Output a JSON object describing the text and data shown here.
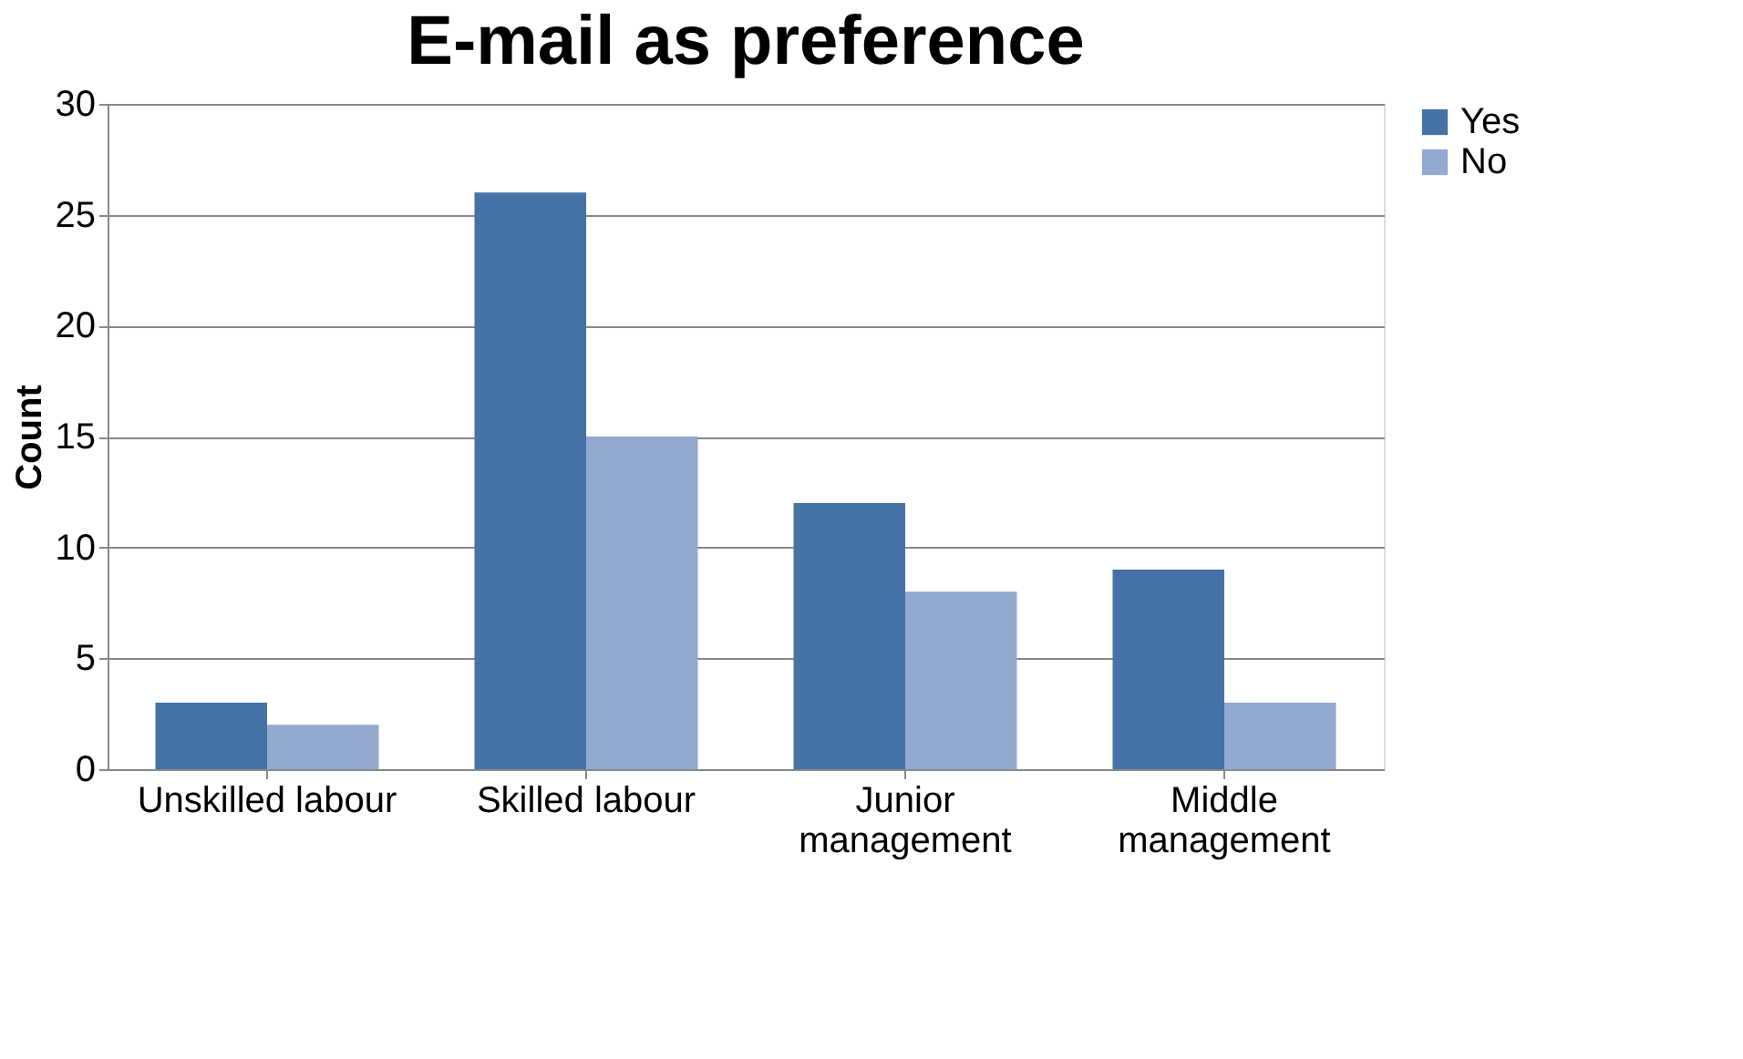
{
  "chart_data": {
    "type": "bar",
    "title": "E-mail as preference",
    "ylabel": "Count",
    "categories": [
      "Unskilled labour",
      "Skilled labour",
      "Junior management",
      "Middle management"
    ],
    "series": [
      {
        "name": "Yes",
        "color": "#4572a7",
        "values": [
          3,
          26,
          12,
          9
        ]
      },
      {
        "name": "No",
        "color": "#93a9cf",
        "values": [
          2,
          15,
          8,
          3
        ]
      }
    ],
    "ylim": [
      0,
      30
    ],
    "yticks": [
      0,
      5,
      10,
      15,
      20,
      25,
      30
    ],
    "grid": "y",
    "legend": "right"
  }
}
